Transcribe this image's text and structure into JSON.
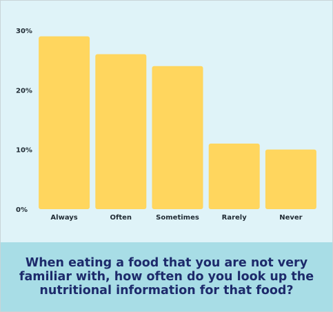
{
  "chart_data": {
    "type": "bar",
    "categories": [
      "Always",
      "Often",
      "Sometimes",
      "Rarely",
      "Never"
    ],
    "values": [
      29,
      26,
      24,
      11,
      10
    ],
    "ylim": [
      0,
      30
    ],
    "yticks": [
      0,
      10,
      20,
      30
    ],
    "ytick_labels": [
      "0%",
      "10%",
      "20%",
      "30%"
    ],
    "grid": false,
    "title": "When eating a food that you are not very familiar with, how often do you look up the nutritional information for that food?",
    "xlabel": "",
    "ylabel": "",
    "colors": {
      "bar": "#ffd65e",
      "plot_background": "#dff3f8",
      "caption_background": "#a8dde6",
      "caption_text": "#1d2a6b",
      "tick_text": "#1f2a33"
    }
  }
}
